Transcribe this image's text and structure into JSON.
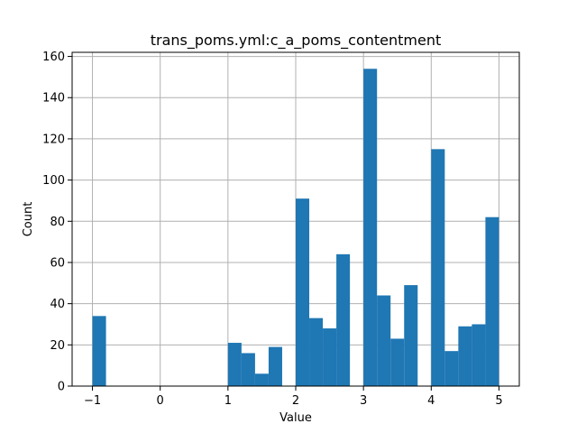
{
  "chart_data": {
    "type": "bar",
    "title": "trans_poms.yml:c_a_poms_contentment",
    "xlabel": "Value",
    "ylabel": "Count",
    "xlim": [
      -1.3,
      5.3
    ],
    "ylim": [
      0,
      162
    ],
    "xticks": [
      -1,
      0,
      1,
      2,
      3,
      4,
      5
    ],
    "yticks": [
      0,
      20,
      40,
      60,
      80,
      100,
      120,
      140,
      160
    ],
    "grid": true,
    "bin_edges": [
      -1.0,
      -0.8,
      -0.6,
      -0.4,
      -0.2,
      0.0,
      0.2,
      0.4,
      0.6,
      0.8,
      1.0,
      1.2,
      1.4,
      1.6,
      1.8,
      2.0,
      2.2,
      2.4,
      2.6,
      2.8,
      3.0,
      3.2,
      3.4,
      3.6,
      3.8,
      4.0,
      4.2,
      4.4,
      4.6,
      4.8,
      5.0
    ],
    "values": [
      34,
      0,
      0,
      0,
      0,
      0,
      0,
      0,
      0,
      0,
      21,
      16,
      6,
      19,
      0,
      91,
      33,
      28,
      64,
      0,
      154,
      44,
      23,
      49,
      0,
      115,
      17,
      29,
      30,
      82
    ]
  }
}
